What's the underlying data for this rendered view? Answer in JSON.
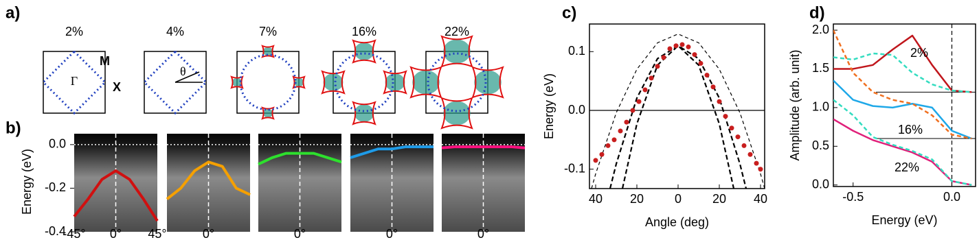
{
  "panel_labels": [
    "a)",
    "b)",
    "c)",
    "d)"
  ],
  "panel_a": {
    "dopings": [
      "2%",
      "4%",
      "7%",
      "16%",
      "22%"
    ],
    "symbols": [
      "M",
      "X",
      "Γ",
      "θ"
    ]
  },
  "panel_b": {
    "ylabel": "Energy (eV)",
    "ylim": [
      -0.4,
      0.05
    ],
    "yticks": [
      -0.4,
      -0.2,
      {
        "value": 0,
        "label": "0.0"
      }
    ],
    "xlim": [
      -45,
      45
    ],
    "xticks": [
      {
        "value": -45,
        "label": "-45°"
      },
      {
        "value": 0,
        "label": "0°"
      },
      {
        "value": 45,
        "label": "45°"
      }
    ],
    "x": [
      -45,
      -30,
      -15,
      0,
      15,
      30,
      45
    ],
    "maps": [
      {
        "color": "#d01010",
        "values": [
          -0.33,
          -0.25,
          -0.16,
          -0.12,
          -0.16,
          -0.25,
          -0.35
        ]
      },
      {
        "color": "#f5a000",
        "values": [
          -0.25,
          -0.2,
          -0.12,
          -0.08,
          -0.1,
          -0.2,
          -0.23
        ]
      },
      {
        "color": "#2de02d",
        "values": [
          -0.09,
          -0.06,
          -0.04,
          -0.04,
          -0.04,
          -0.06,
          -0.08
        ]
      },
      {
        "color": "#1e9be8",
        "values": [
          -0.06,
          -0.04,
          -0.02,
          -0.02,
          -0.01,
          -0.01,
          -0.01
        ]
      },
      {
        "color": "#ff1080",
        "values": [
          -0.015,
          -0.01,
          -0.01,
          -0.01,
          -0.01,
          -0.01,
          -0.015
        ]
      }
    ]
  },
  "chart_data": [
    {
      "type": "scatter",
      "xlabel": "Angle (deg)",
      "ylabel": "Energy (eV)",
      "xlim": [
        -43,
        42
      ],
      "ylim": [
        -0.133,
        0.147
      ],
      "xticks": [
        {
          "value": -40,
          "label": "40"
        },
        {
          "value": -20,
          "label": "20"
        },
        0,
        20,
        40
      ],
      "yticks": [
        -0.1,
        {
          "value": 0,
          "label": "0.0"
        },
        0.1
      ],
      "zero_line": true,
      "series": [
        {
          "color": "#000000",
          "line_style": "dashed",
          "x": [
            -42,
            -40,
            -30,
            -20,
            -10,
            0,
            10,
            20,
            30,
            40,
            42
          ],
          "values": [
            -0.133,
            -0.108,
            -0.004,
            0.07,
            0.115,
            0.13,
            0.115,
            0.07,
            -0.004,
            -0.108,
            -0.133
          ]
        },
        {
          "color": "#000000",
          "line_style": "bold-dashed",
          "x": [
            -33,
            -30,
            -20,
            -10,
            0,
            10,
            20,
            30,
            33
          ],
          "values": [
            -0.133,
            -0.091,
            0.021,
            0.088,
            0.11,
            0.088,
            0.021,
            -0.091,
            -0.133
          ]
        },
        {
          "color": "#000000",
          "line_style": "bold-dashed",
          "x": [
            -27,
            -20,
            -10,
            0,
            10,
            20,
            27
          ],
          "values": [
            -0.133,
            -0.023,
            0.077,
            0.11,
            0.077,
            -0.023,
            -0.133
          ]
        },
        {
          "color": "#c81e1e",
          "line_style": "markers",
          "x": [
            -40,
            -37,
            -34,
            -31,
            -28,
            -25,
            -22,
            -19,
            -16,
            -13,
            -10,
            -7,
            -4,
            -1,
            2,
            5,
            8,
            11,
            14,
            17,
            20,
            23,
            26,
            29,
            32,
            35,
            38,
            40
          ],
          "values": [
            -0.085,
            -0.075,
            -0.06,
            -0.05,
            -0.035,
            -0.02,
            0.0,
            0.015,
            0.035,
            0.055,
            0.075,
            0.09,
            0.105,
            0.11,
            0.112,
            0.108,
            0.095,
            0.08,
            0.06,
            0.04,
            0.015,
            -0.01,
            -0.03,
            -0.045,
            -0.06,
            -0.075,
            -0.09,
            -0.1
          ]
        }
      ]
    },
    {
      "type": "line",
      "xlabel": "Energy (eV)",
      "ylabel": "Amplitude (arb. unit)",
      "xlim": [
        -0.6,
        0.12
      ],
      "ylim": [
        -0.02,
        2.08
      ],
      "xticks": [
        -0.5,
        {
          "value": 0,
          "label": "0.0"
        }
      ],
      "yticks": [
        {
          "value": 0,
          "label": "0.0"
        },
        0.5,
        {
          "value": 1,
          "label": "1.0"
        },
        1.5,
        {
          "value": 2,
          "label": "2.0"
        }
      ],
      "hlines": [
        1.2,
        0.6
      ],
      "vline": 0,
      "annotations": [
        "2%",
        "16%",
        "22%"
      ],
      "x": [
        -0.6,
        -0.5,
        -0.4,
        -0.3,
        -0.2,
        -0.1,
        0,
        0.1
      ],
      "series": [
        {
          "color": "#c0161c",
          "line_style": "solid",
          "values": [
            1.5,
            1.5,
            1.55,
            1.75,
            1.93,
            1.55,
            1.22,
            1.2
          ]
        },
        {
          "color": "#33dcc0",
          "line_style": "dashed",
          "values": [
            1.65,
            1.62,
            1.7,
            1.68,
            1.45,
            1.3,
            1.22,
            1.2
          ]
        },
        {
          "color": "#1ea8e8",
          "line_style": "solid",
          "values": [
            1.35,
            1.1,
            1.02,
            1.0,
            1.05,
            1.0,
            0.7,
            0.6
          ]
        },
        {
          "color": "#f07020",
          "line_style": "dashed",
          "values": [
            2.0,
            1.45,
            1.2,
            1.1,
            1.05,
            0.9,
            0.65,
            0.6
          ]
        },
        {
          "color": "#e0207a",
          "line_style": "solid",
          "values": [
            0.85,
            0.7,
            0.58,
            0.5,
            0.42,
            0.3,
            0.05,
            0.0
          ]
        },
        {
          "color": "#33dcc0",
          "line_style": "dashed",
          "values": [
            1.1,
            0.9,
            0.62,
            0.52,
            0.44,
            0.33,
            0.05,
            0.0
          ]
        }
      ]
    }
  ]
}
